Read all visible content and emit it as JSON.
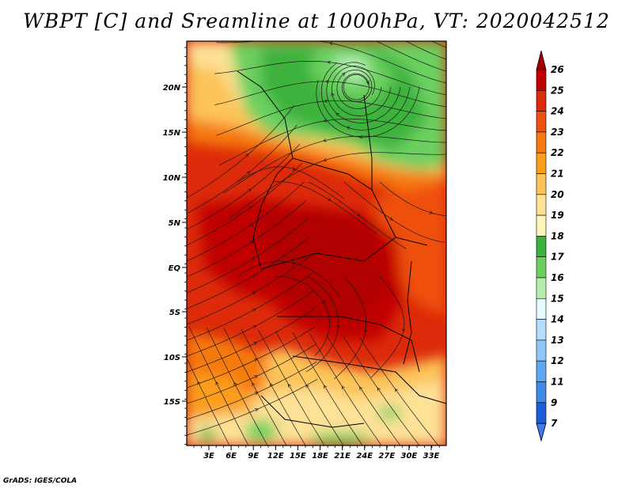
{
  "title": "WBPT [C] and Sreamline at 1000hPa, VT: 2020042512",
  "credit": "GrADS: IGES/COLA",
  "map": {
    "lat_ticks": [
      "20N",
      "15N",
      "10N",
      "5N",
      "EQ",
      "5S",
      "10S",
      "15S"
    ],
    "lon_ticks": [
      "3E",
      "6E",
      "9E",
      "12E",
      "15E",
      "18E",
      "21E",
      "24E",
      "27E",
      "30E",
      "33E"
    ],
    "variable": "Wet-bulb potential temperature",
    "streamlines": "1000hPa wind streamlines"
  },
  "colorbar": {
    "levels": [
      {
        "label": "26",
        "color": "#a50000"
      },
      {
        "label": "25",
        "color": "#c00000"
      },
      {
        "label": "24",
        "color": "#dc2a0a"
      },
      {
        "label": "23",
        "color": "#ee5010"
      },
      {
        "label": "22",
        "color": "#f57a10"
      },
      {
        "label": "21",
        "color": "#fa9e1e"
      },
      {
        "label": "20",
        "color": "#fcc45a"
      },
      {
        "label": "19",
        "color": "#fde196"
      },
      {
        "label": "18",
        "color": "#fff5b8"
      },
      {
        "label": "17",
        "color": "#3cb23c"
      },
      {
        "label": "16",
        "color": "#6cd060"
      },
      {
        "label": "15",
        "color": "#b4eeb0"
      },
      {
        "label": "14",
        "color": "#e6faff"
      },
      {
        "label": "13",
        "color": "#b4dcff"
      },
      {
        "label": "12",
        "color": "#8ec6fa"
      },
      {
        "label": "11",
        "color": "#5ea8f0"
      },
      {
        "label": "9",
        "color": "#3e8ae6"
      },
      {
        "label": "7",
        "color": "#1c5cd6"
      }
    ],
    "bottom_color": "#3c7ce8",
    "top_color": "#a50000"
  }
}
